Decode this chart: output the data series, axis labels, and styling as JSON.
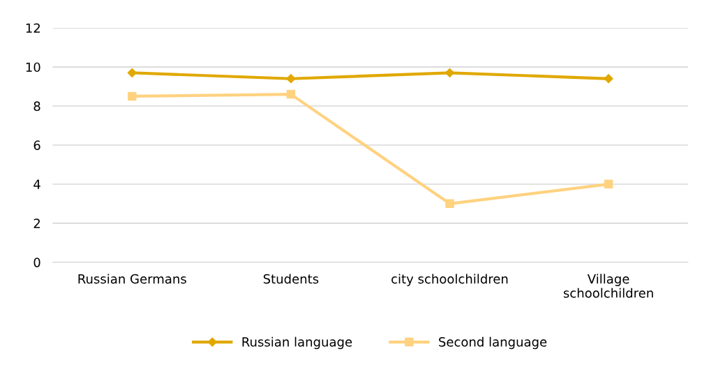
{
  "chart_data": {
    "type": "line",
    "categories": [
      "Russian Germans",
      "Students",
      "city schoolchildren",
      "Village\nschoolchildren"
    ],
    "series": [
      {
        "name": "Russian language",
        "color": "#e0a800",
        "values": [
          9.7,
          9.4,
          9.7,
          9.4
        ],
        "marker": "diamond"
      },
      {
        "name": "Second language",
        "color": "#ffd280",
        "values": [
          8.5,
          8.6,
          3.0,
          4.0
        ],
        "marker": "square"
      }
    ],
    "ylim": [
      0,
      12
    ],
    "yticks": [
      0,
      2,
      4,
      6,
      8,
      10,
      12
    ],
    "grid": "y",
    "legend": "bottom",
    "line_style": "solid"
  }
}
